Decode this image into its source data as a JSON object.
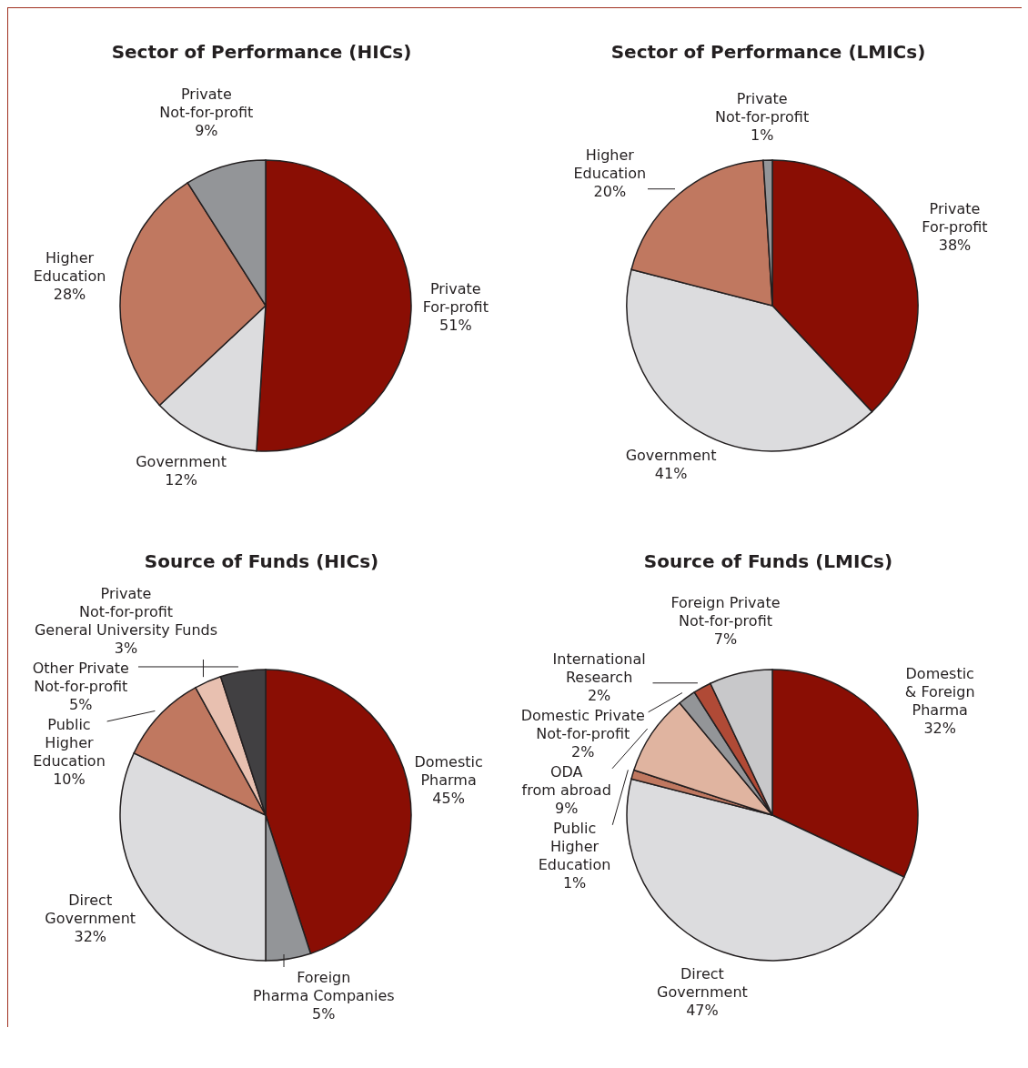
{
  "chart_data": [
    {
      "type": "pie",
      "title": "Sector of Performance (HICs)",
      "categories": [
        "Private\nFor-profit",
        "Government",
        "Higher\nEducation",
        "Private\nNot-for-profit"
      ],
      "values": [
        51,
        12,
        28,
        9
      ],
      "value_labels": [
        "51%",
        "12%",
        "28%",
        "9%"
      ],
      "colors": [
        "#8a0e04",
        "#dcdcde",
        "#c07860",
        "#939598"
      ]
    },
    {
      "type": "pie",
      "title": "Sector of Performance (LMICs)",
      "categories": [
        "Private\nFor-profit",
        "Government",
        "Higher\nEducation",
        "Private\nNot-for-profit"
      ],
      "values": [
        38,
        41,
        20,
        1
      ],
      "value_labels": [
        "38%",
        "41%",
        "20%",
        "1%"
      ],
      "colors": [
        "#8a0e04",
        "#dcdcde",
        "#c07860",
        "#939598"
      ]
    },
    {
      "type": "pie",
      "title": "Source of Funds (HICs)",
      "categories": [
        "Domestic\nPharma",
        "Foreign\nPharma Companies",
        "Direct\nGovernment",
        "Public\nHigher\nEducation",
        "Private\nNot-for-profit\nGeneral University Funds",
        "Other Private\nNot-for-profit"
      ],
      "values": [
        45,
        5,
        32,
        10,
        3,
        5
      ],
      "value_labels": [
        "45%",
        "5%",
        "32%",
        "10%",
        "3%",
        "5%"
      ],
      "colors": [
        "#8a0e04",
        "#939598",
        "#dcdcde",
        "#c07860",
        "#e8c0b0",
        "#414042"
      ]
    },
    {
      "type": "pie",
      "title": "Source of Funds (LMICs)",
      "categories": [
        "Domestic\n& Foreign\nPharma",
        "Direct\nGovernment",
        "Public\nHigher\nEducation",
        "ODA\nfrom abroad",
        "Domestic Private\nNot-for-profit",
        "International\nResearch",
        "Foreign Private\nNot-for-profit"
      ],
      "values": [
        32,
        47,
        1,
        9,
        2,
        2,
        7
      ],
      "value_labels": [
        "32%",
        "47%",
        "1%",
        "9%",
        "2%",
        "2%",
        "7%"
      ],
      "colors": [
        "#8a0e04",
        "#dcdcde",
        "#c07860",
        "#e0b4a0",
        "#939598",
        "#b04a36",
        "#c8c8ca"
      ]
    }
  ]
}
